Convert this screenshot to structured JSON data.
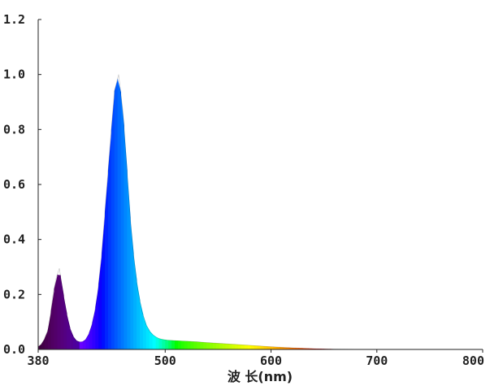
{
  "chart_data": {
    "type": "area",
    "title": "",
    "xlabel": "波 长(nm)",
    "ylabel": "",
    "xlim": [
      380,
      800
    ],
    "ylim": [
      0,
      1.2
    ],
    "x_ticks": [
      380,
      500,
      600,
      700,
      800
    ],
    "x_tick_labels": [
      "380",
      "500",
      "600",
      "700",
      "800"
    ],
    "y_ticks": [
      0.0,
      0.2,
      0.4,
      0.6,
      0.8,
      1.0,
      1.2
    ],
    "y_tick_labels": [
      "0.0",
      "0.2",
      "0.4",
      "0.6",
      "0.8",
      "1.0",
      "1.2"
    ],
    "grid": false,
    "legend": "none",
    "fill": "wavelength-colored spectrum",
    "series": [
      {
        "x": [
          380,
          383,
          386,
          390,
          394,
          397,
          400,
          403,
          406,
          409,
          412,
          415,
          418,
          421,
          424,
          427,
          430,
          433,
          436,
          440,
          444,
          448,
          452,
          456,
          460,
          464,
          467,
          470,
          474,
          478,
          482,
          486,
          490,
          494,
          498,
          502,
          506,
          510,
          515,
          520,
          530,
          540,
          560,
          580,
          600,
          620,
          640,
          660,
          680,
          700,
          720,
          750,
          800
        ],
        "y": [
          0.01,
          0.02,
          0.04,
          0.08,
          0.2,
          0.26,
          0.295,
          0.22,
          0.15,
          0.09,
          0.055,
          0.035,
          0.028,
          0.027,
          0.032,
          0.05,
          0.08,
          0.13,
          0.2,
          0.35,
          0.55,
          0.75,
          0.94,
          1.0,
          0.87,
          0.65,
          0.48,
          0.35,
          0.22,
          0.14,
          0.09,
          0.062,
          0.048,
          0.04,
          0.036,
          0.034,
          0.033,
          0.032,
          0.031,
          0.03,
          0.028,
          0.025,
          0.02,
          0.015,
          0.01,
          0.006,
          0.003,
          0.0015,
          0.0005,
          0.0,
          0.0,
          0.0,
          0.0
        ]
      }
    ]
  }
}
